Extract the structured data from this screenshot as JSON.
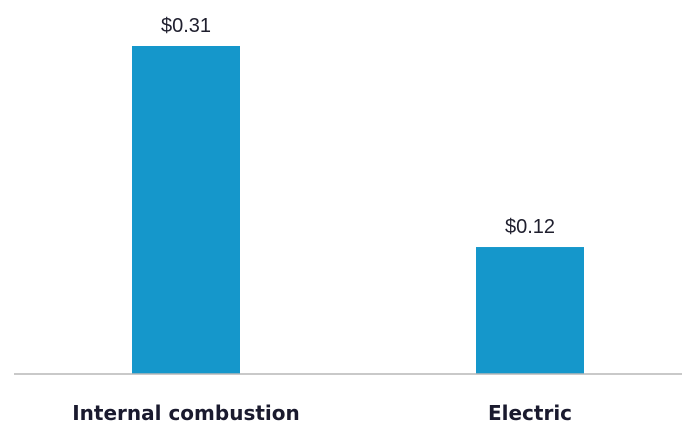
{
  "chart_data": {
    "type": "bar",
    "categories": [
      "Internal combustion",
      "Electric"
    ],
    "values": [
      0.31,
      0.12
    ],
    "value_labels": [
      "$0.31",
      "$0.12"
    ],
    "title": "",
    "xlabel": "",
    "ylabel": "",
    "ylim": [
      0,
      0.31
    ],
    "grid": false,
    "legend": "none",
    "colors": {
      "bar": "#1597cb",
      "baseline": "#b7b7b7",
      "text": "#1f1f2e"
    }
  }
}
